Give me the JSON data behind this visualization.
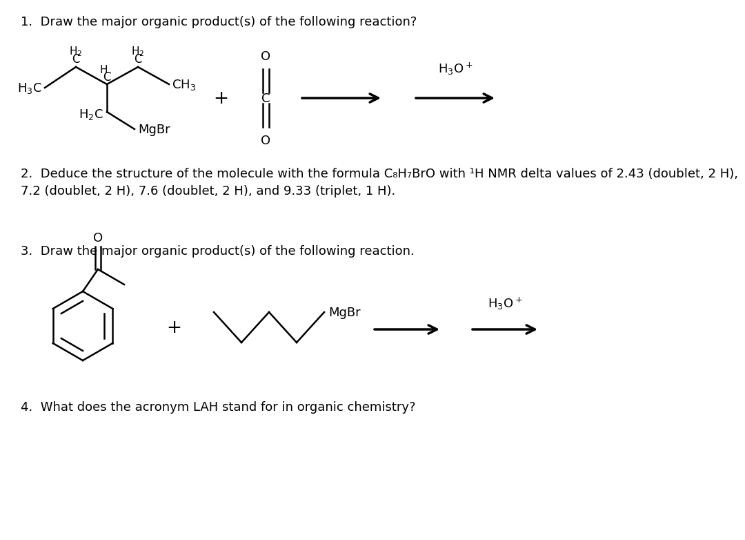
{
  "bg_color": "#ffffff",
  "text_color": "#000000",
  "fig_width": 10.24,
  "fig_height": 7.63,
  "q1_text": "1.  Draw the major organic product(s) of the following reaction?",
  "q2_text": "2.  Deduce the structure of the molecule with the formula C₈H₇BrO with ¹H NMR delta values of 2.43 (doublet, 2 H),\n7.2 (doublet, 2 H), 7.6 (doublet, 2 H), and 9.33 (triplet, 1 H).",
  "q3_text": "3.  Draw the major organic product(s) of the following reaction.",
  "q4_text": "4.  What does the acronym LAH stand for in organic chemistry?",
  "font_size": 13,
  "line_width": 1.8,
  "arrow_lw": 2.5
}
